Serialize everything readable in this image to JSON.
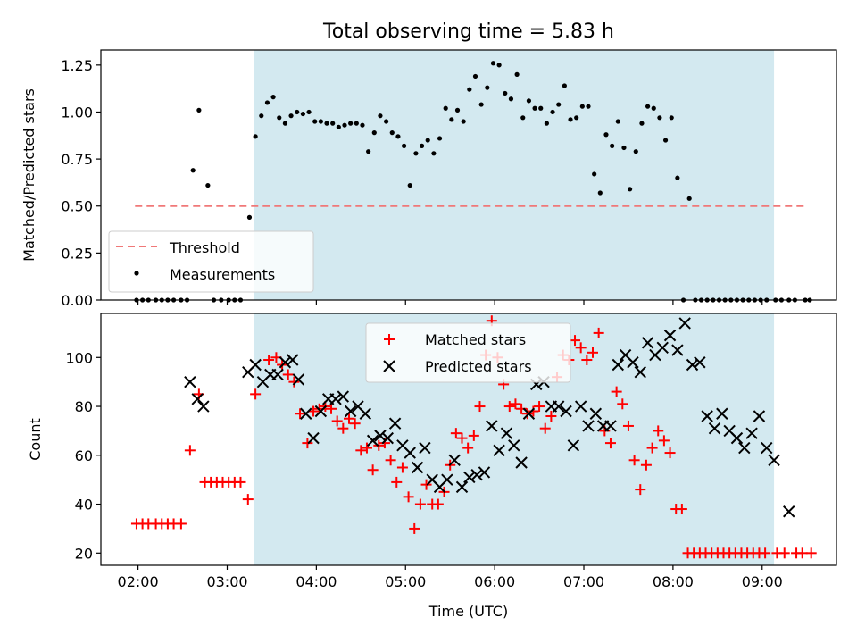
{
  "chart_data": [
    {
      "type": "scatter",
      "title": "Total observing time = 5.83 h",
      "xlabel": "",
      "ylabel": "Matched/Predicted stars",
      "ylim": [
        0,
        1.33
      ],
      "y_ticks": [
        "0.00",
        "0.25",
        "0.50",
        "0.75",
        "1.00",
        "1.25"
      ],
      "y_tick_values": [
        0,
        0.25,
        0.5,
        0.75,
        1.0,
        1.25
      ],
      "shaded_span": {
        "x_start": "03:18",
        "x_end": "09:08",
        "color": "#d3e9f0"
      },
      "legend": {
        "position": "lower-left",
        "entries": [
          "Threshold",
          "Measurements"
        ]
      },
      "series": [
        {
          "name": "Threshold",
          "style": "dashed-line",
          "color": "#f07878",
          "x": [
            "01:58",
            "09:30"
          ],
          "y": [
            0.5,
            0.5
          ]
        },
        {
          "name": "Measurements",
          "style": "dot",
          "color": "#000000",
          "x": [
            "01:59",
            "02:03",
            "02:07",
            "02:12",
            "02:16",
            "02:20",
            "02:24",
            "02:29",
            "02:33",
            "02:37",
            "02:41",
            "02:47",
            "02:51",
            "02:56",
            "03:01",
            "03:05",
            "03:09",
            "03:15",
            "03:19",
            "03:23",
            "03:27",
            "03:31",
            "03:35",
            "03:39",
            "03:43",
            "03:47",
            "03:51",
            "03:55",
            "03:59",
            "04:03",
            "04:07",
            "04:11",
            "04:15",
            "04:19",
            "04:23",
            "04:27",
            "04:31",
            "04:35",
            "04:39",
            "04:43",
            "04:47",
            "04:51",
            "04:55",
            "04:59",
            "05:03",
            "05:07",
            "05:11",
            "05:15",
            "05:19",
            "05:23",
            "05:27",
            "05:31",
            "05:35",
            "05:39",
            "05:43",
            "05:47",
            "05:51",
            "05:55",
            "05:59",
            "06:03",
            "06:07",
            "06:11",
            "06:15",
            "06:19",
            "06:23",
            "06:27",
            "06:31",
            "06:35",
            "06:39",
            "06:43",
            "06:47",
            "06:51",
            "06:55",
            "06:59",
            "07:03",
            "07:07",
            "07:11",
            "07:15",
            "07:19",
            "07:23",
            "07:27",
            "07:31",
            "07:35",
            "07:39",
            "07:43",
            "07:47",
            "07:51",
            "07:55",
            "07:59",
            "08:03",
            "08:07",
            "08:11",
            "08:15",
            "08:19",
            "08:23",
            "08:27",
            "08:31",
            "08:35",
            "08:39",
            "08:43",
            "08:47",
            "08:51",
            "08:55",
            "08:59",
            "09:03",
            "09:09",
            "09:13",
            "09:18",
            "09:22",
            "09:29",
            "09:32"
          ],
          "y": [
            0,
            0,
            0,
            0,
            0,
            0,
            0,
            0,
            0,
            0.69,
            1.01,
            0.61,
            0,
            0,
            0,
            0,
            0,
            0.44,
            0.87,
            0.98,
            1.05,
            1.08,
            0.97,
            0.94,
            0.98,
            1.0,
            0.99,
            1.0,
            0.95,
            0.95,
            0.94,
            0.94,
            0.92,
            0.93,
            0.94,
            0.94,
            0.93,
            0.79,
            0.89,
            0.98,
            0.95,
            0.89,
            0.87,
            0.82,
            0.61,
            0.78,
            0.82,
            0.85,
            0.78,
            0.86,
            1.02,
            0.96,
            1.01,
            0.95,
            1.12,
            1.19,
            1.04,
            1.13,
            1.26,
            1.25,
            1.1,
            1.07,
            1.2,
            0.97,
            1.06,
            1.02,
            1.02,
            0.94,
            1.0,
            1.04,
            1.14,
            0.96,
            0.97,
            1.03,
            1.03,
            0.67,
            0.57,
            0.88,
            0.82,
            0.95,
            0.81,
            0.59,
            0.79,
            0.94,
            1.03,
            1.02,
            0.97,
            0.85,
            0.97,
            0.65,
            0,
            0.54,
            0,
            0,
            0,
            0,
            0,
            0,
            0,
            0,
            0,
            0,
            0,
            0,
            0,
            0,
            0,
            0,
            0,
            0,
            0
          ]
        }
      ]
    },
    {
      "type": "scatter",
      "title": "",
      "xlabel": "Time (UTC)",
      "ylabel": "Count",
      "ylim": [
        15,
        118
      ],
      "y_ticks": [
        "20",
        "40",
        "60",
        "80",
        "100"
      ],
      "y_tick_values": [
        20,
        40,
        60,
        80,
        100
      ],
      "x_ticks": [
        "02:00",
        "03:00",
        "04:00",
        "05:00",
        "06:00",
        "07:00",
        "08:00",
        "09:00"
      ],
      "xlim": [
        "01:35",
        "09:50"
      ],
      "shaded_span": {
        "x_start": "03:18",
        "x_end": "09:08",
        "color": "#d3e9f0"
      },
      "legend": {
        "position": "top-center",
        "entries": [
          "Matched stars",
          "Predicted stars"
        ]
      },
      "series": [
        {
          "name": "Matched stars",
          "style": "plus",
          "color": "#ff0000",
          "x": [
            "01:59",
            "02:03",
            "02:07",
            "02:12",
            "02:16",
            "02:20",
            "02:24",
            "02:29",
            "02:35",
            "02:41",
            "02:45",
            "02:49",
            "02:53",
            "02:57",
            "03:01",
            "03:05",
            "03:09",
            "03:14",
            "03:19",
            "03:28",
            "03:33",
            "03:37",
            "03:41",
            "03:45",
            "03:49",
            "03:54",
            "03:58",
            "04:02",
            "04:06",
            "04:10",
            "04:14",
            "04:18",
            "04:22",
            "04:26",
            "04:30",
            "04:34",
            "04:38",
            "04:42",
            "04:46",
            "04:50",
            "04:54",
            "04:58",
            "05:02",
            "05:06",
            "05:10",
            "05:14",
            "05:18",
            "05:22",
            "05:26",
            "05:30",
            "05:34",
            "05:38",
            "05:42",
            "05:46",
            "05:50",
            "05:54",
            "05:58",
            "06:02",
            "06:06",
            "06:10",
            "06:14",
            "06:18",
            "06:22",
            "06:26",
            "06:30",
            "06:34",
            "06:38",
            "06:42",
            "06:46",
            "06:50",
            "06:54",
            "06:58",
            "07:02",
            "07:06",
            "07:10",
            "07:14",
            "07:18",
            "07:22",
            "07:26",
            "07:30",
            "07:34",
            "07:38",
            "07:42",
            "07:46",
            "07:50",
            "07:54",
            "07:58",
            "08:02",
            "08:06",
            "08:10",
            "08:14",
            "08:18",
            "08:22",
            "08:26",
            "08:30",
            "08:34",
            "08:38",
            "08:42",
            "08:46",
            "08:50",
            "08:54",
            "08:58",
            "09:02",
            "09:10",
            "09:15",
            "09:23",
            "09:27",
            "09:33"
          ],
          "y": [
            32,
            32,
            32,
            32,
            32,
            32,
            32,
            32,
            62,
            85,
            49,
            49,
            49,
            49,
            49,
            49,
            49,
            42,
            85,
            99,
            100,
            97,
            93,
            90,
            77,
            65,
            78,
            79,
            80,
            79,
            74,
            71,
            75,
            73,
            62,
            63,
            54,
            64,
            65,
            58,
            49,
            55,
            43,
            30,
            40,
            48,
            40,
            40,
            45,
            56,
            69,
            67,
            63,
            68,
            80,
            101,
            115,
            100,
            89,
            80,
            81,
            79,
            77,
            78,
            80,
            71,
            76,
            92,
            101,
            99,
            107,
            104,
            99,
            102,
            110,
            70,
            65,
            86,
            81,
            72,
            58,
            46,
            56,
            63,
            70,
            66,
            61,
            38,
            38,
            20,
            20,
            20,
            20,
            20,
            20,
            20,
            20,
            20,
            20,
            20,
            20,
            20,
            20,
            20,
            20,
            20,
            20,
            20
          ]
        },
        {
          "name": "Predicted stars",
          "style": "x",
          "color": "#000000",
          "x": [
            "02:35",
            "02:40",
            "02:44",
            "03:14",
            "03:19",
            "03:24",
            "03:29",
            "03:34",
            "03:39",
            "03:44",
            "03:48",
            "03:53",
            "03:58",
            "04:03",
            "04:08",
            "04:13",
            "04:18",
            "04:23",
            "04:28",
            "04:33",
            "04:38",
            "04:43",
            "04:48",
            "04:53",
            "04:58",
            "05:03",
            "05:08",
            "05:13",
            "05:18",
            "05:23",
            "05:28",
            "05:33",
            "05:38",
            "05:43",
            "05:48",
            "05:53",
            "05:58",
            "06:03",
            "06:08",
            "06:13",
            "06:18",
            "06:23",
            "06:28",
            "06:33",
            "06:38",
            "06:43",
            "06:48",
            "06:53",
            "06:58",
            "07:03",
            "07:08",
            "07:13",
            "07:18",
            "07:23",
            "07:28",
            "07:33",
            "07:38",
            "07:43",
            "07:48",
            "07:53",
            "07:58",
            "08:03",
            "08:08",
            "08:13",
            "08:18",
            "08:23",
            "08:28",
            "08:33",
            "08:38",
            "08:43",
            "08:48",
            "08:53",
            "08:58",
            "09:03",
            "09:08",
            "09:18"
          ],
          "y": [
            90,
            83,
            80,
            94,
            97,
            90,
            93,
            93,
            98,
            99,
            91,
            77,
            67,
            78,
            83,
            83,
            84,
            78,
            80,
            77,
            66,
            68,
            67,
            73,
            64,
            61,
            55,
            63,
            50,
            47,
            50,
            58,
            47,
            51,
            52,
            53,
            72,
            62,
            69,
            64,
            57,
            77,
            89,
            90,
            80,
            80,
            78,
            64,
            80,
            72,
            77,
            72,
            72,
            97,
            101,
            98,
            94,
            106,
            101,
            104,
            109,
            103,
            114,
            97,
            98,
            76,
            71,
            77,
            70,
            67,
            63,
            69,
            76,
            63,
            58,
            37
          ]
        }
      ]
    }
  ]
}
